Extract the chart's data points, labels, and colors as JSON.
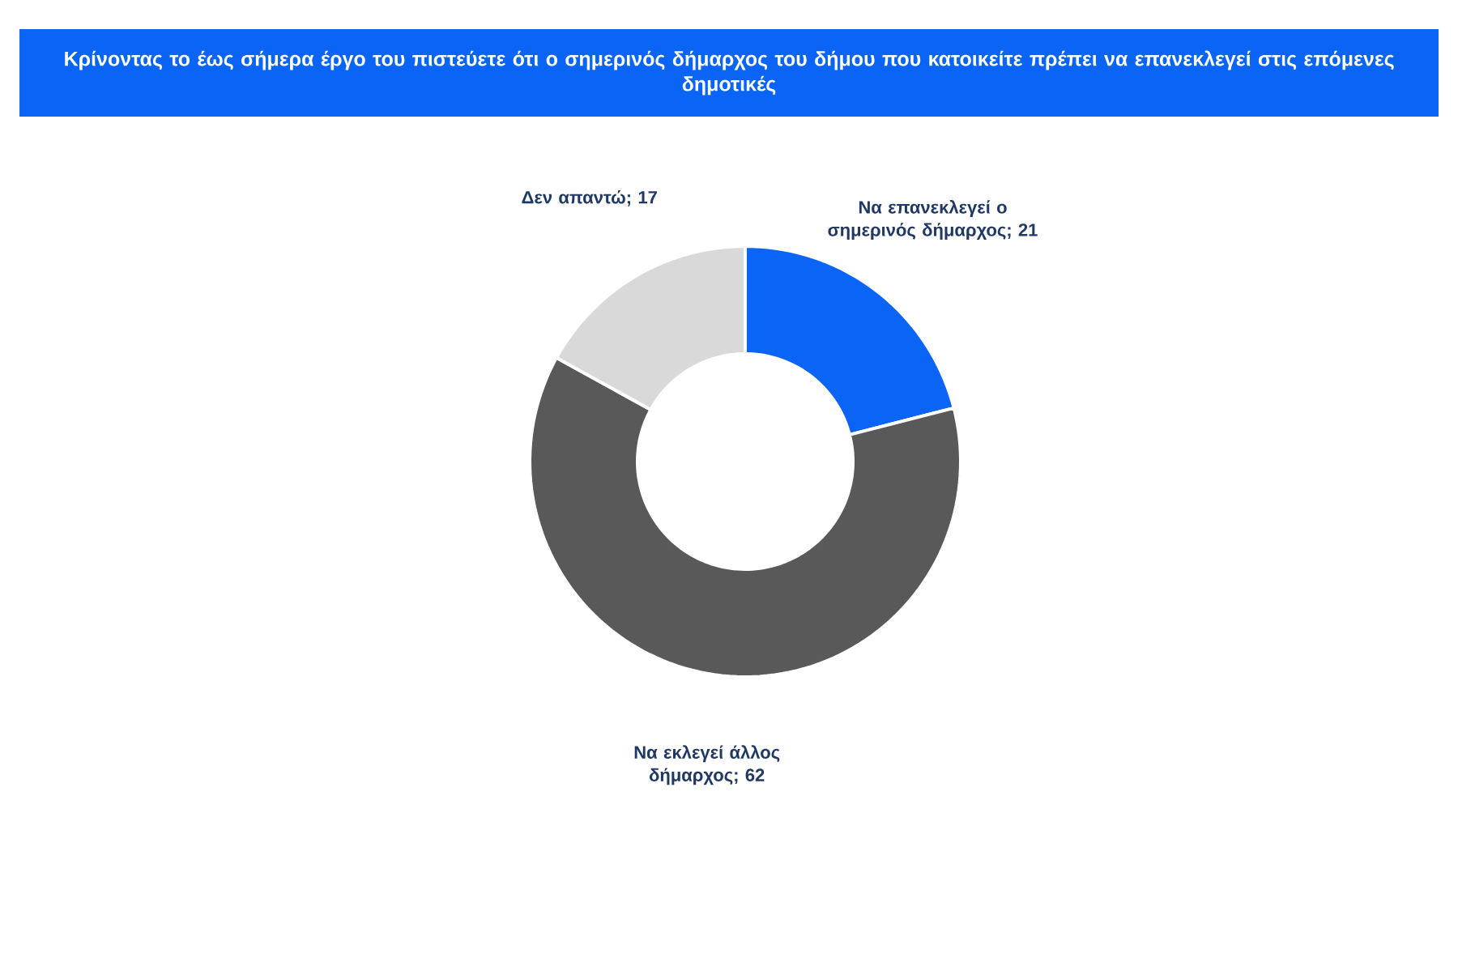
{
  "chart_data": {
    "type": "donut",
    "title": "Κρίνοντας το έως σήμερα έργο του πιστεύετε ότι ο σημερινός δήμαρχος του δήμου που κατοικείτε πρέπει να επανεκλεγεί στις επόμενες δημοτικές",
    "categories": [
      "Να επανεκλεγεί ο σημερινός δήμαρχος",
      "Να εκλεγεί άλλος δήμαρχος",
      "Δεν απαντώ"
    ],
    "values": [
      21,
      62,
      17
    ],
    "value_labels": [
      "; 21",
      "; 62",
      "; 17"
    ],
    "colors": [
      "#0a64f5",
      "#595959",
      "#d9d9d9"
    ],
    "legend": false
  }
}
